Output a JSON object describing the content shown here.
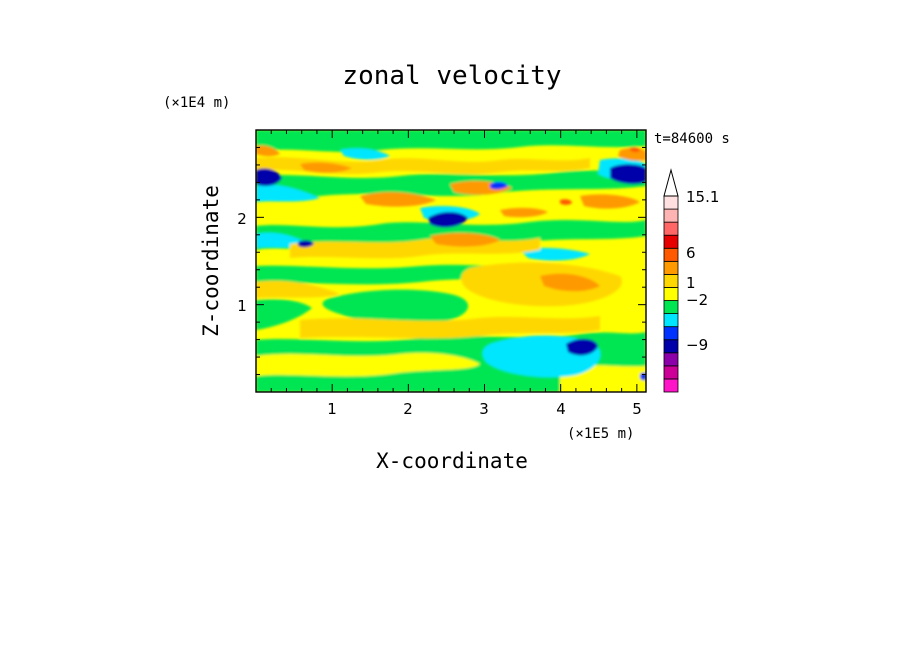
{
  "chart_data": {
    "type": "heatmap",
    "title": "zonal velocity",
    "xlabel": "X-coordinate",
    "ylabel": "Z-coordinate",
    "x_unit": "(×1E5 m)",
    "y_unit": "(×1E4 m)",
    "time_label": "t=84600 s",
    "x_ticks": [
      "1",
      "2",
      "3",
      "4",
      "5"
    ],
    "y_ticks": [
      "1",
      "2"
    ],
    "xlim": [
      0,
      5.12
    ],
    "ylim": [
      0,
      3.0
    ],
    "colorbar": {
      "labels": [
        "15.1",
        "6",
        "1",
        "−2",
        "−9"
      ],
      "levels": [
        -15,
        -12,
        -9,
        -6,
        -3,
        -2,
        -1,
        0,
        1,
        2,
        3,
        6,
        9,
        12,
        15.1
      ],
      "colors": [
        "#ff14c8",
        "#cc0099",
        "#8c00aa",
        "#0000aa",
        "#0033ff",
        "#00e6ff",
        "#00e652",
        "#ffff00",
        "#ffd700",
        "#ff9900",
        "#ff5a00",
        "#e60000",
        "#ff6666",
        "#ffb4b4",
        "#ffe0e0"
      ]
    },
    "field_features": [
      {
        "x": 0.1,
        "z": 2.45,
        "value": -5
      },
      {
        "x": 0.55,
        "z": 2.3,
        "value": -2
      },
      {
        "x": 0.6,
        "z": 1.7,
        "value": -3
      },
      {
        "x": 1.2,
        "z": 2.45,
        "value": 3
      },
      {
        "x": 1.6,
        "z": 1.85,
        "value": 3
      },
      {
        "x": 2.5,
        "z": 2.0,
        "value": -5
      },
      {
        "x": 2.6,
        "z": 1.75,
        "value": 3
      },
      {
        "x": 2.9,
        "z": 2.4,
        "value": 3
      },
      {
        "x": 3.3,
        "z": 2.15,
        "value": 3
      },
      {
        "x": 4.1,
        "z": 2.6,
        "value": 3
      },
      {
        "x": 4.7,
        "z": 2.55,
        "value": -6
      },
      {
        "x": 4.4,
        "z": 2.1,
        "value": 3
      },
      {
        "x": 4.2,
        "z": 1.3,
        "value": 3
      },
      {
        "x": 3.6,
        "z": 1.15,
        "value": 2
      },
      {
        "x": 1.9,
        "z": 1.1,
        "value": -1
      },
      {
        "x": 4.25,
        "z": 0.52,
        "value": -6
      },
      {
        "x": 3.6,
        "z": 0.45,
        "value": -2
      },
      {
        "x": 1.8,
        "z": 0.55,
        "value": 2
      }
    ]
  }
}
